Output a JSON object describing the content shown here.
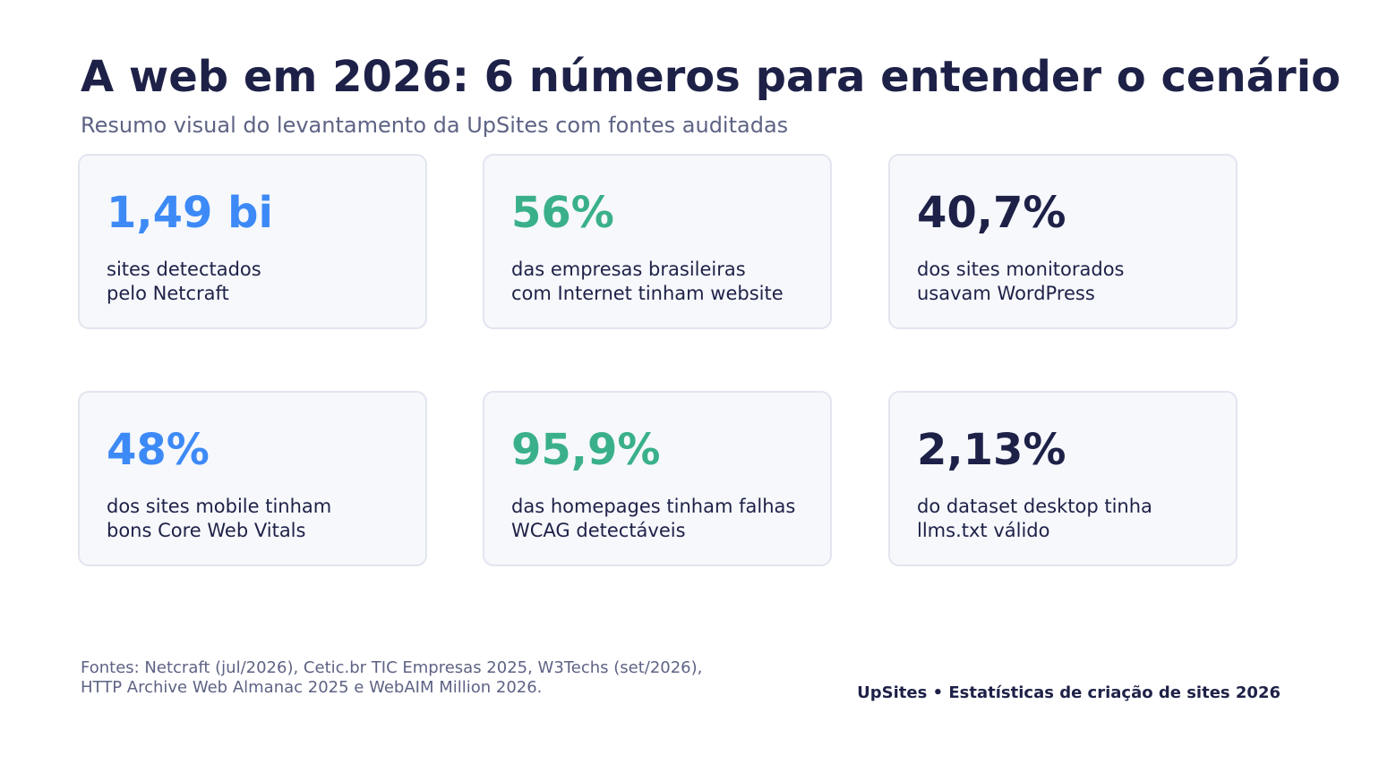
{
  "header": {
    "title": "A web em 2026: 6 números para entender o cenário",
    "subtitle": "Resumo visual do levantamento da UpSites com fontes auditadas"
  },
  "colors": {
    "blue": "#3d8af7",
    "green": "#3ab08a",
    "navy": "#1e2147"
  },
  "cards": [
    {
      "value": "1,49 bi",
      "label_line1": "sites detectados",
      "label_line2": "pelo Netcraft",
      "color": "#3d8af7"
    },
    {
      "value": "56%",
      "label_line1": "das empresas brasileiras",
      "label_line2": "com Internet tinham website",
      "color": "#3ab08a"
    },
    {
      "value": "40,7%",
      "label_line1": "dos sites monitorados",
      "label_line2": "usavam WordPress",
      "color": "#1e2147"
    },
    {
      "value": "48%",
      "label_line1": "dos sites mobile tinham",
      "label_line2": "bons Core Web Vitals",
      "color": "#3d8af7"
    },
    {
      "value": "95,9%",
      "label_line1": "das homepages tinham falhas",
      "label_line2": "WCAG detectáveis",
      "color": "#3ab08a"
    },
    {
      "value": "2,13%",
      "label_line1": "do dataset desktop tinha",
      "label_line2": "llms.txt válido",
      "color": "#1e2147"
    }
  ],
  "footer": {
    "sources_line1": "Fontes: Netcraft (jul/2026), Cetic.br TIC Empresas 2025, W3Techs (set/2026),",
    "sources_line2": "HTTP Archive Web Almanac 2025 e WebAIM Million 2026.",
    "brand": "UpSites • Estatísticas de criação de sites 2026"
  }
}
